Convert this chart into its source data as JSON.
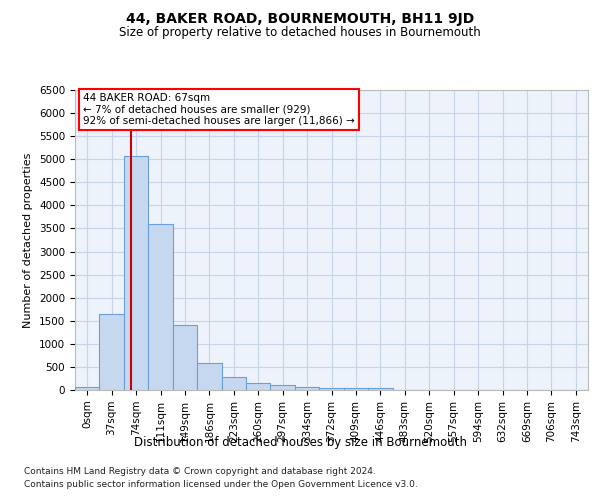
{
  "title": "44, BAKER ROAD, BOURNEMOUTH, BH11 9JD",
  "subtitle": "Size of property relative to detached houses in Bournemouth",
  "xlabel": "Distribution of detached houses by size in Bournemouth",
  "ylabel": "Number of detached properties",
  "footnote1": "Contains HM Land Registry data © Crown copyright and database right 2024.",
  "footnote2": "Contains public sector information licensed under the Open Government Licence v3.0.",
  "annotation_title": "44 BAKER ROAD: 67sqm",
  "annotation_line1": "← 7% of detached houses are smaller (929)",
  "annotation_line2": "92% of semi-detached houses are larger (11,866) →",
  "bar_categories": [
    "0sqm",
    "37sqm",
    "74sqm",
    "111sqm",
    "149sqm",
    "186sqm",
    "223sqm",
    "260sqm",
    "297sqm",
    "334sqm",
    "372sqm",
    "409sqm",
    "446sqm",
    "483sqm",
    "520sqm",
    "557sqm",
    "594sqm",
    "632sqm",
    "669sqm",
    "706sqm",
    "743sqm"
  ],
  "bar_values": [
    75,
    1640,
    5080,
    3600,
    1400,
    580,
    285,
    150,
    110,
    75,
    50,
    50,
    50,
    0,
    0,
    0,
    0,
    0,
    0,
    0,
    0
  ],
  "bar_color": "#c5d8f0",
  "bar_edge_color": "#6a9fd8",
  "grid_color": "#c8d4e8",
  "background_color": "#edf2fb",
  "vline_color": "#cc0000",
  "ylim_max": 6500,
  "yticks": [
    0,
    500,
    1000,
    1500,
    2000,
    2500,
    3000,
    3500,
    4000,
    4500,
    5000,
    5500,
    6000,
    6500
  ],
  "title_fontsize": 10,
  "subtitle_fontsize": 8.5,
  "ylabel_fontsize": 8,
  "xlabel_fontsize": 8.5,
  "tick_fontsize": 7.5,
  "annot_fontsize": 7.5,
  "footnote_fontsize": 6.5
}
